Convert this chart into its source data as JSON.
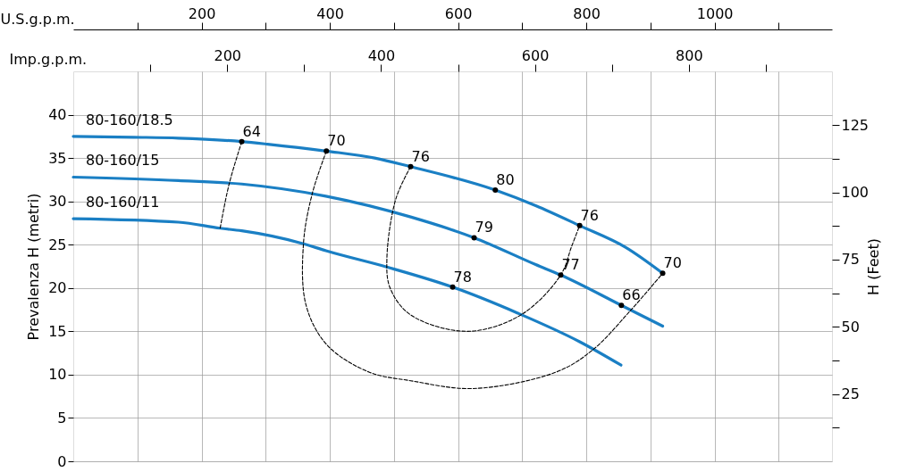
{
  "chart_data": {
    "type": "line",
    "xlabel": "U.S.g.p.m.",
    "x2label": "Imp.g.p.m.",
    "ylabel": "Prevalenza H (metri)",
    "y2label": "H (Feet)",
    "xlim": [
      0,
      1183
    ],
    "xticks": [
      {
        "value": 100,
        "label": null
      },
      200,
      {
        "value": 300,
        "label": null
      },
      400,
      {
        "value": 500,
        "label": null
      },
      600,
      {
        "value": 700,
        "label": null
      },
      800,
      {
        "value": 900,
        "label": null
      },
      1000,
      {
        "value": 1100,
        "label": null
      }
    ],
    "x2lim": [
      0,
      986
    ],
    "x2ticks": [
      {
        "value": 100,
        "label": null
      },
      200,
      {
        "value": 300,
        "label": null
      },
      400,
      {
        "value": 500,
        "label": null
      },
      600,
      {
        "value": 700,
        "label": null
      },
      800,
      {
        "value": 900,
        "label": null
      }
    ],
    "ylim": [
      0,
      45
    ],
    "yticks": [
      0,
      5,
      10,
      15,
      20,
      25,
      30,
      35,
      40
    ],
    "y2lim": [
      0,
      145
    ],
    "y2ticks": [
      {
        "value": 12.5,
        "label": null
      },
      25,
      {
        "value": 37.5,
        "label": null
      },
      50,
      {
        "value": 62.5,
        "label": null
      },
      75,
      {
        "value": 87.5,
        "label": null
      },
      100,
      {
        "value": 112.5,
        "label": null
      },
      125
    ],
    "grid": true,
    "series": [
      {
        "name": "80-160/18.5",
        "color": "#1a7fc4",
        "line_style": "solid",
        "x": [
          0,
          94,
          164,
          262.7,
          303,
          394.7,
          470,
          526,
          658,
          721,
          789.5,
          861,
          919
        ],
        "values": [
          37.5,
          37.4,
          37.3,
          36.9,
          36.6,
          35.8,
          35.0,
          34.0,
          31.3,
          29.5,
          27.2,
          24.7,
          21.7
        ]
      },
      {
        "name": "80-160/15",
        "color": "#1a7fc4",
        "line_style": "solid",
        "x": [
          0,
          164,
          262.7,
          393.7,
          526,
          625,
          721,
          760,
          854.6,
          919
        ],
        "values": [
          32.8,
          32.4,
          32.0,
          30.6,
          28.2,
          25.8,
          22.7,
          21.5,
          18.0,
          15.6
        ]
      },
      {
        "name": "80-160/11",
        "color": "#1a7fc4",
        "line_style": "solid",
        "x": [
          0,
          164,
          229,
          262.7,
          359,
          394,
          490,
          591.6,
          693,
          789.5,
          854
        ],
        "values": [
          28.0,
          27.6,
          26.9,
          26.6,
          25.1,
          24.3,
          22.4,
          20.1,
          17.1,
          13.8,
          11.1
        ]
      },
      {
        "color": "#000000",
        "line_style": "dashed",
        "x": [
          262.7,
          243,
          229
        ],
        "values": [
          36.9,
          32.0,
          26.9
        ]
      },
      {
        "color": "#000000",
        "line_style": "dashed",
        "x": [
          394.7,
          373,
          359,
          363,
          396,
          461,
          526,
          624,
          753,
          809,
          870,
          919
        ],
        "values": [
          35.8,
          31.0,
          25.2,
          18.0,
          13.4,
          10.3,
          9.3,
          8.4,
          10.3,
          12.8,
          17.5,
          21.7
        ]
      },
      {
        "color": "#000000",
        "line_style": "dashed",
        "x": [
          526,
          503,
          489,
          494,
          526,
          614,
          698,
          760,
          777,
          789.5
        ],
        "values": [
          34.0,
          30.3,
          23.4,
          20.0,
          16.9,
          15.0,
          16.9,
          21.5,
          24.8,
          27.2
        ]
      },
      {
        "type": "scatter",
        "marker": "circle",
        "color": "#000000",
        "x": [
          262.7,
          394.7,
          526,
          658,
          789.5,
          919,
          625,
          760,
          854.6,
          591.6
        ],
        "values": [
          36.9,
          35.8,
          34.0,
          31.3,
          27.2,
          21.7,
          25.8,
          21.5,
          18.0,
          20.1
        ]
      }
    ],
    "annotations": [
      {
        "text": "64",
        "x": 262.7,
        "y": 36.9
      },
      {
        "text": "70",
        "x": 394.7,
        "y": 35.8
      },
      {
        "text": "76",
        "x": 526,
        "y": 34.0
      },
      {
        "text": "80",
        "x": 658,
        "y": 31.3
      },
      {
        "text": "76",
        "x": 789.5,
        "y": 27.2
      },
      {
        "text": "70",
        "x": 919,
        "y": 21.7
      },
      {
        "text": "79",
        "x": 625,
        "y": 25.8
      },
      {
        "text": "77",
        "x": 760,
        "y": 21.5
      },
      {
        "text": "66",
        "x": 854.6,
        "y": 18.0
      },
      {
        "text": "78",
        "x": 591.6,
        "y": 20.1
      }
    ]
  }
}
